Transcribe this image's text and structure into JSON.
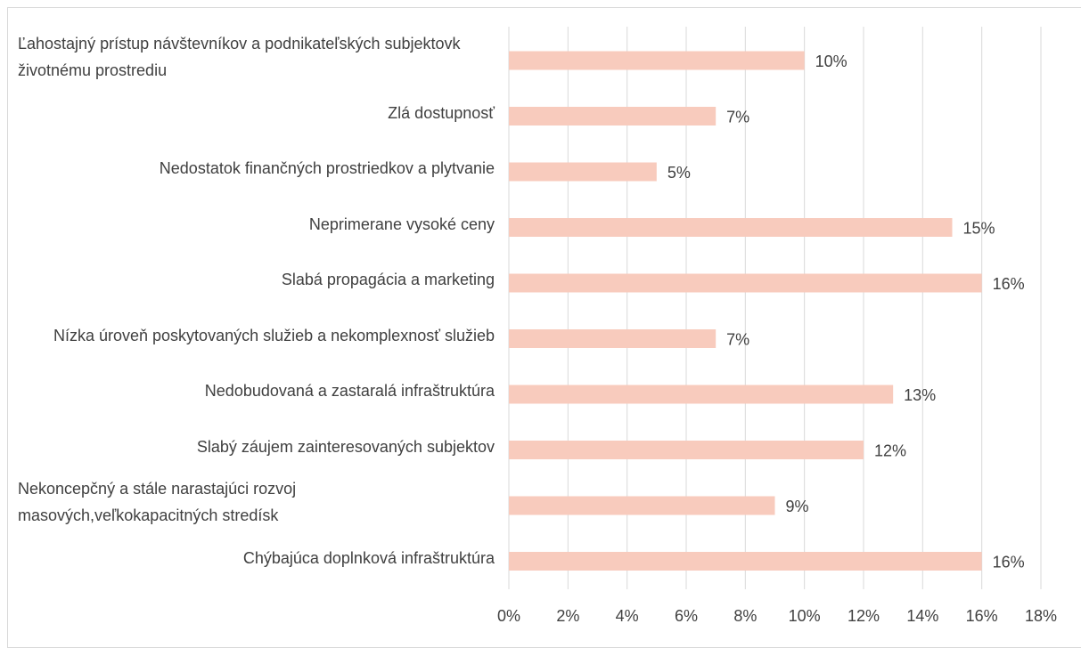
{
  "chart_data": {
    "type": "bar",
    "orientation": "horizontal",
    "categories": [
      "Ľahostajný prístup návštevníkov a podnikateľských subjektovk životnému prostrediu",
      "Zlá dostupnosť",
      "Nedostatok finančných prostriedkov a plytvanie",
      "Neprimerane vysoké ceny",
      "Slabá propagácia a marketing",
      "Nízka úroveň poskytovaných služieb a nekomplexnosť služieb",
      "Nedobudovaná a zastaralá infraštruktúra",
      "Slabý záujem zainteresovaných subjektov",
      "Nekoncepčný a stále narastajúci rozvoj masových,veľkokapacitných stredísk",
      "Chýbajúca doplnková infraštruktúra"
    ],
    "values": [
      10,
      7,
      5,
      15,
      16,
      7,
      13,
      12,
      9,
      16
    ],
    "value_labels": [
      "10%",
      "7%",
      "5%",
      "15%",
      "16%",
      "7%",
      "13%",
      "12%",
      "9%",
      "16%"
    ],
    "color": "#f8cbbd",
    "xlim": [
      0,
      18
    ],
    "xticks": [
      {
        "value": 0,
        "label": "0%"
      },
      {
        "value": 2,
        "label": "2%"
      },
      {
        "value": 4,
        "label": "4%"
      },
      {
        "value": 6,
        "label": "6%"
      },
      {
        "value": 8,
        "label": "8%"
      },
      {
        "value": 10,
        "label": "10%"
      },
      {
        "value": 12,
        "label": "12%"
      },
      {
        "value": 14,
        "label": "14%"
      },
      {
        "value": 16,
        "label": "16%"
      },
      {
        "value": 18,
        "label": "18%"
      }
    ],
    "grid": true
  }
}
